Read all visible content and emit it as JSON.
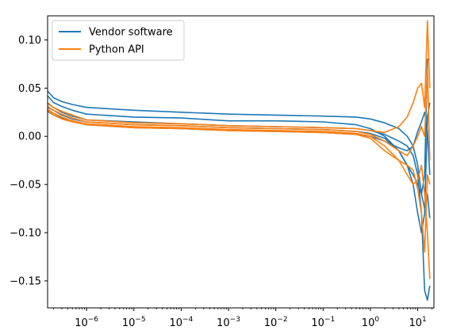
{
  "chart_data": {
    "type": "line",
    "title": "",
    "xlabel": "",
    "ylabel": "",
    "xscale": "log",
    "xlim": [
      1.5e-07,
      22
    ],
    "ylim": [
      -0.178,
      0.125
    ],
    "grid": false,
    "legend_position": "upper-left",
    "x_ticks": [
      {
        "value": 1e-06,
        "base": "10",
        "exp": "−6"
      },
      {
        "value": 1e-05,
        "base": "10",
        "exp": "−5"
      },
      {
        "value": 0.0001,
        "base": "10",
        "exp": "−4"
      },
      {
        "value": 0.001,
        "base": "10",
        "exp": "−3"
      },
      {
        "value": 0.01,
        "base": "10",
        "exp": "−2"
      },
      {
        "value": 0.1,
        "base": "10",
        "exp": "−1"
      },
      {
        "value": 1,
        "base": "10",
        "exp": "0"
      },
      {
        "value": 10,
        "base": "10",
        "exp": "1"
      }
    ],
    "y_ticks": [
      {
        "value": 0.1,
        "label": "0.10"
      },
      {
        "value": 0.05,
        "label": "0.05"
      },
      {
        "value": 0.0,
        "label": "0.00"
      },
      {
        "value": -0.05,
        "label": "−0.05"
      },
      {
        "value": -0.1,
        "label": "−0.10"
      },
      {
        "value": -0.15,
        "label": "−0.15"
      }
    ],
    "legend": [
      {
        "label": "Vendor software",
        "color": "#1f77b4"
      },
      {
        "label": "Python API",
        "color": "#ff7f0e"
      }
    ],
    "series": [
      {
        "group": "Vendor software",
        "color": "#1f77b4",
        "x": [
          1.5e-07,
          2e-07,
          3e-07,
          5e-07,
          1e-06,
          1e-05,
          0.0001,
          0.001,
          0.01,
          0.1,
          0.5,
          1,
          2,
          4,
          6,
          8,
          10,
          12,
          14,
          16,
          18
        ],
        "y": [
          0.047,
          0.04,
          0.036,
          0.033,
          0.03,
          0.027,
          0.025,
          0.023,
          0.022,
          0.021,
          0.02,
          0.018,
          0.014,
          0.008,
          0.0,
          -0.01,
          -0.03,
          -0.06,
          -0.04,
          0.08,
          0.08
        ]
      },
      {
        "group": "Vendor software",
        "color": "#1f77b4",
        "x": [
          1.5e-07,
          2e-07,
          3e-07,
          5e-07,
          1e-06,
          1e-05,
          0.0001,
          0.001,
          0.01,
          0.1,
          0.5,
          1,
          2,
          4,
          6,
          8,
          10,
          12,
          14,
          16,
          18
        ],
        "y": [
          0.042,
          0.035,
          0.031,
          0.027,
          0.023,
          0.02,
          0.019,
          0.016,
          0.016,
          0.015,
          0.012,
          0.008,
          0.0,
          -0.015,
          -0.03,
          -0.05,
          -0.08,
          -0.1,
          -0.08,
          0.02,
          0.035
        ]
      },
      {
        "group": "Vendor software",
        "color": "#1f77b4",
        "x": [
          1.5e-07,
          2e-07,
          3e-07,
          5e-07,
          1e-06,
          1e-05,
          0.0001,
          0.001,
          0.01,
          0.1,
          0.5,
          1,
          2,
          4,
          6,
          8,
          10,
          12,
          14,
          16,
          18
        ],
        "y": [
          0.034,
          0.03,
          0.025,
          0.021,
          0.017,
          0.015,
          0.013,
          0.011,
          0.01,
          0.009,
          0.008,
          0.006,
          0.002,
          -0.005,
          -0.01,
          -0.02,
          -0.04,
          -0.08,
          -0.16,
          -0.17,
          -0.155
        ]
      },
      {
        "group": "Vendor software",
        "color": "#1f77b4",
        "x": [
          1.5e-07,
          2e-07,
          3e-07,
          5e-07,
          1e-06,
          1e-05,
          0.0001,
          0.001,
          0.01,
          0.1,
          0.5,
          1,
          2,
          4,
          6,
          8,
          10,
          12,
          14,
          16,
          18
        ],
        "y": [
          0.03,
          0.027,
          0.022,
          0.018,
          0.015,
          0.012,
          0.011,
          0.009,
          0.008,
          0.007,
          0.005,
          0.003,
          -0.002,
          -0.015,
          -0.03,
          -0.04,
          -0.05,
          -0.06,
          -0.075,
          -0.06,
          -0.085
        ]
      },
      {
        "group": "Vendor software",
        "color": "#1f77b4",
        "x": [
          1.5e-07,
          2e-07,
          3e-07,
          5e-07,
          1e-06,
          1e-05,
          0.0001,
          0.001,
          0.01,
          0.1,
          0.5,
          1,
          2,
          4,
          6,
          8,
          10,
          12,
          14,
          16,
          18
        ],
        "y": [
          0.026,
          0.022,
          0.019,
          0.016,
          0.012,
          0.009,
          0.008,
          0.006,
          0.005,
          0.004,
          0.002,
          0.0,
          -0.005,
          -0.012,
          -0.015,
          -0.01,
          0.005,
          0.015,
          0.025,
          0.005,
          -0.04
        ]
      },
      {
        "group": "Python API",
        "color": "#ff7f0e",
        "x": [
          1.5e-07,
          2e-07,
          3e-07,
          5e-07,
          1e-06,
          1e-05,
          0.0001,
          0.001,
          0.01,
          0.1,
          0.5,
          1,
          2,
          4,
          6,
          8,
          10,
          12,
          14,
          16,
          18
        ],
        "y": [
          0.035,
          0.03,
          0.026,
          0.022,
          0.017,
          0.014,
          0.013,
          0.011,
          0.01,
          0.009,
          0.008,
          0.006,
          0.004,
          0.01,
          0.02,
          0.035,
          0.05,
          0.055,
          0.03,
          0.12,
          0.05
        ]
      },
      {
        "group": "Python API",
        "color": "#ff7f0e",
        "x": [
          1.5e-07,
          2e-07,
          3e-07,
          5e-07,
          1e-06,
          1e-05,
          0.0001,
          0.001,
          0.01,
          0.1,
          0.5,
          1,
          2,
          4,
          6,
          8,
          10,
          12,
          14,
          16,
          18
        ],
        "y": [
          0.031,
          0.027,
          0.023,
          0.019,
          0.015,
          0.012,
          0.011,
          0.009,
          0.008,
          0.007,
          0.005,
          0.002,
          -0.005,
          -0.015,
          -0.02,
          -0.01,
          0.0,
          0.01,
          0.0,
          0.07,
          -0.025
        ]
      },
      {
        "group": "Python API",
        "color": "#ff7f0e",
        "x": [
          1.5e-07,
          2e-07,
          3e-07,
          5e-07,
          1e-06,
          1e-05,
          0.0001,
          0.001,
          0.01,
          0.1,
          0.5,
          1,
          2,
          4,
          6,
          8,
          10,
          12,
          14,
          16,
          18
        ],
        "y": [
          0.028,
          0.024,
          0.02,
          0.016,
          0.013,
          0.01,
          0.009,
          0.007,
          0.006,
          0.005,
          0.003,
          0.0,
          -0.01,
          -0.025,
          -0.04,
          -0.05,
          -0.045,
          -0.03,
          -0.06,
          -0.1,
          -0.148
        ]
      },
      {
        "group": "Python API",
        "color": "#ff7f0e",
        "x": [
          1.5e-07,
          2e-07,
          3e-07,
          5e-07,
          1e-06,
          1e-05,
          0.0001,
          0.001,
          0.01,
          0.1,
          0.5,
          1,
          2,
          4,
          6,
          8,
          10,
          12,
          14,
          16,
          18
        ],
        "y": [
          0.027,
          0.022,
          0.018,
          0.015,
          0.012,
          0.009,
          0.008,
          0.006,
          0.005,
          0.004,
          0.002,
          -0.002,
          -0.015,
          -0.025,
          -0.03,
          -0.035,
          -0.055,
          -0.08,
          -0.12,
          -0.04,
          -0.05
        ]
      }
    ]
  }
}
